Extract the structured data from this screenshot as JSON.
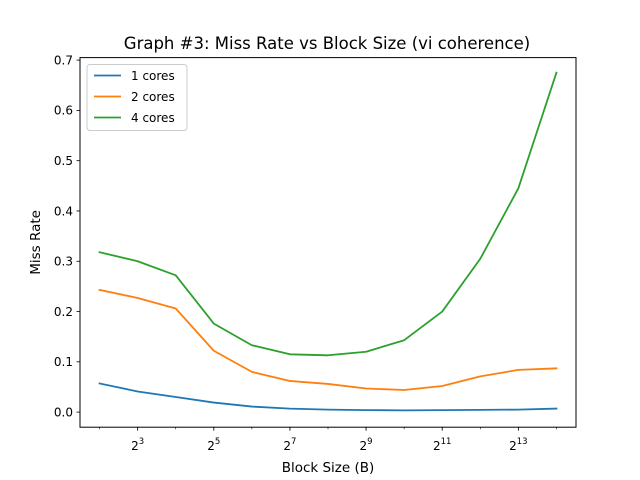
{
  "chart_data": {
    "type": "line",
    "title": "Graph #3: Miss Rate vs Block Size (vi coherence)",
    "xlabel": "Block Size (B)",
    "ylabel": "Miss Rate",
    "x_scale": "log2",
    "x": [
      4,
      8,
      16,
      32,
      64,
      128,
      256,
      512,
      1024,
      2048,
      4096,
      8192,
      16384
    ],
    "xlim": [
      2.8,
      23400
    ],
    "ylim": [
      -0.03,
      0.705
    ],
    "xticks": [
      {
        "base": "2",
        "exp": "3",
        "value": 8
      },
      {
        "base": "2",
        "exp": "5",
        "value": 32
      },
      {
        "base": "2",
        "exp": "7",
        "value": 128
      },
      {
        "base": "2",
        "exp": "9",
        "value": 512
      },
      {
        "base": "2",
        "exp": "11",
        "value": 2048
      },
      {
        "base": "2",
        "exp": "13",
        "value": 8192
      }
    ],
    "yticks": [
      {
        "label": "0.0",
        "value": 0.0
      },
      {
        "label": "0.1",
        "value": 0.1
      },
      {
        "label": "0.2",
        "value": 0.2
      },
      {
        "label": "0.3",
        "value": 0.3
      },
      {
        "label": "0.4",
        "value": 0.4
      },
      {
        "label": "0.5",
        "value": 0.5
      },
      {
        "label": "0.6",
        "value": 0.6
      },
      {
        "label": "0.7",
        "value": 0.7
      }
    ],
    "grid": false,
    "legend_position": "top-left",
    "series": [
      {
        "name": "1 cores",
        "color": "#1f77b4",
        "values": [
          0.057,
          0.041,
          0.03,
          0.019,
          0.011,
          0.007,
          0.005,
          0.004,
          0.0035,
          0.004,
          0.0045,
          0.005,
          0.007
        ]
      },
      {
        "name": "2 cores",
        "color": "#ff7f0e",
        "values": [
          0.243,
          0.227,
          0.206,
          0.122,
          0.08,
          0.062,
          0.056,
          0.047,
          0.044,
          0.052,
          0.071,
          0.084,
          0.087
        ]
      },
      {
        "name": "4 cores",
        "color": "#2ca02c",
        "values": [
          0.318,
          0.3,
          0.272,
          0.176,
          0.133,
          0.115,
          0.113,
          0.12,
          0.143,
          0.2,
          0.305,
          0.445,
          0.675
        ]
      }
    ]
  }
}
